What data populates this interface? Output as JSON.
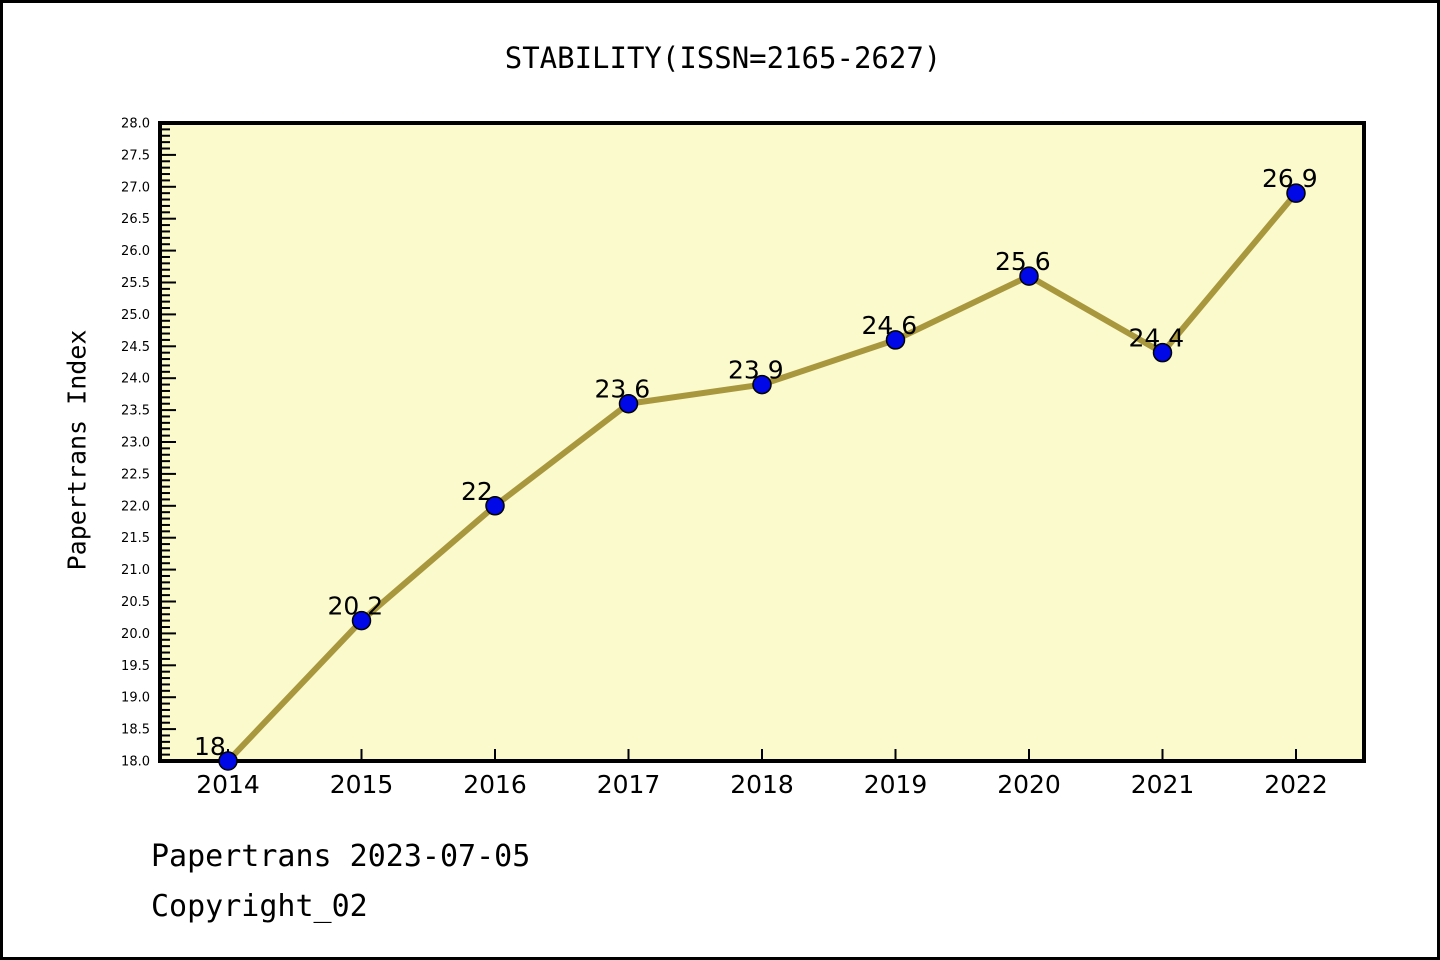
{
  "title": "STABILITY(ISSN=2165-2627)",
  "footer": {
    "line1": "Papertrans 2023-07-05",
    "line2": "Copyright_02"
  },
  "chart_data": {
    "type": "line",
    "title": "STABILITY(ISSN=2165-2627)",
    "xlabel": "",
    "ylabel": "Papertrans Index",
    "categories": [
      2014,
      2015,
      2016,
      2017,
      2018,
      2019,
      2020,
      2021,
      2022
    ],
    "values": [
      18,
      20.2,
      22,
      23.6,
      23.9,
      24.6,
      25.6,
      24.4,
      26.9
    ],
    "point_labels": [
      "18",
      "20.2",
      "22",
      "23.6",
      "23.9",
      "24.6",
      "25.6",
      "24.4",
      "26.9"
    ],
    "ylim": [
      18.0,
      28.0
    ],
    "ytick_major_step": 0.5,
    "ytick_minor_step": 0.1,
    "grid": false,
    "legend": "none",
    "colors": {
      "line": "#A9973E",
      "marker_fill": "#0008E8",
      "marker_edge": "#000000",
      "plot_background": "#FAFACD",
      "axis": "#000000",
      "text": "#000000",
      "page_background": "#FFFFFF"
    }
  }
}
